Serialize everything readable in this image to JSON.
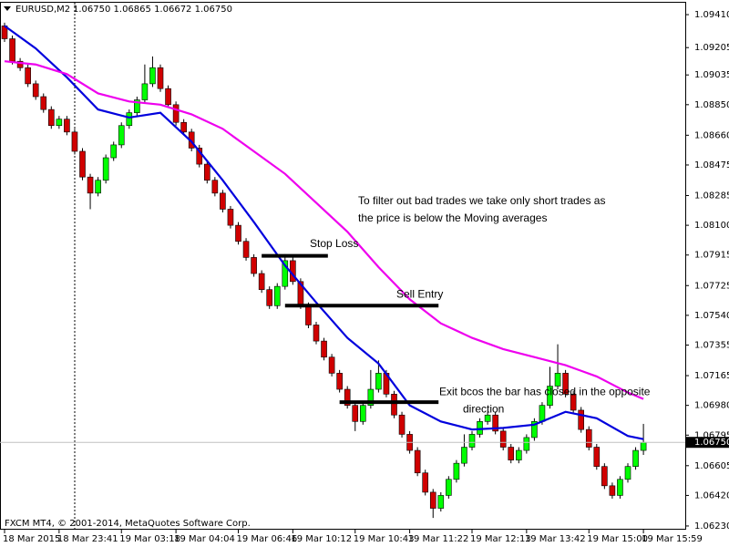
{
  "chart_data": {
    "type": "candlestick",
    "symbol": "EURUSD,M2",
    "ohlc_text": "1.06750 1.06865 1.06672 1.06750",
    "footer": "FXCM MT4, © 2001-2014, MetaQuotes Software Corp.",
    "bull_color": "#00ff00",
    "bear_color": "#d00000",
    "ylim": [
      1.06207,
      1.09484
    ],
    "yticks": [
      {
        "value": 1.0941,
        "label": "1.09410"
      },
      1.09205,
      1.09035,
      {
        "value": 1.0885,
        "label": "1.08850"
      },
      {
        "value": 1.0866,
        "label": "1.08660"
      },
      1.08475,
      1.08285,
      {
        "value": 1.081,
        "label": "1.08100"
      },
      1.07915,
      1.07725,
      {
        "value": 1.0754,
        "label": "1.07540"
      },
      1.07355,
      1.07165,
      {
        "value": 1.0698,
        "label": "1.06980"
      },
      1.06795,
      1.06605,
      {
        "value": 1.0642,
        "label": "1.06420"
      },
      {
        "value": 1.0623,
        "label": "1.06230"
      }
    ],
    "current_price": {
      "value": 1.0675,
      "label": "1.06750"
    },
    "categories": [
      "18 Mar 2015",
      null,
      null,
      null,
      null,
      null,
      null,
      "18 Mar 23:41",
      null,
      null,
      null,
      null,
      null,
      null,
      null,
      "19 Mar 03:18",
      null,
      null,
      null,
      null,
      null,
      null,
      "19 Mar 04:04",
      null,
      null,
      null,
      null,
      null,
      null,
      null,
      "19 Mar 06:46",
      null,
      null,
      null,
      null,
      null,
      null,
      "19 Mar 10:12",
      null,
      null,
      null,
      null,
      null,
      null,
      null,
      "19 Mar 10:43",
      null,
      null,
      null,
      null,
      null,
      null,
      "19 Mar 11:22",
      null,
      null,
      null,
      null,
      null,
      null,
      null,
      "19 Mar 12:13",
      null,
      null,
      null,
      null,
      null,
      null,
      "19 Mar 13:42",
      null,
      null,
      null,
      null,
      null,
      null,
      null,
      "19 Mar 15:00",
      null,
      null,
      null,
      null,
      null,
      null,
      "19 Mar 15:59"
    ],
    "open": [
      1.0934,
      1.0926,
      1.0912,
      1.0908,
      1.0898,
      1.089,
      1.0882,
      1.0872,
      1.0876,
      1.0868,
      1.0856,
      1.084,
      1.083,
      1.0838,
      1.0852,
      1.086,
      1.0872,
      1.088,
      1.0888,
      1.0898,
      1.0908,
      1.0895,
      1.0885,
      1.0874,
      1.0868,
      1.0858,
      1.0848,
      1.0838,
      1.083,
      1.082,
      1.081,
      1.08,
      1.079,
      1.078,
      1.077,
      1.076,
      1.0772,
      1.0788,
      1.0775,
      1.076,
      1.0748,
      1.0738,
      1.0728,
      1.0718,
      1.0708,
      1.0698,
      1.0688,
      1.0698,
      1.0708,
      1.0718,
      1.0705,
      1.0692,
      1.068,
      1.067,
      1.0656,
      1.0644,
      1.0634,
      1.0642,
      1.0652,
      1.0662,
      1.0672,
      1.068,
      1.0688,
      1.0692,
      1.0682,
      1.0672,
      1.0664,
      1.067,
      1.0678,
      1.0688,
      1.0698,
      1.071,
      1.0718,
      1.0705,
      1.0695,
      1.0683,
      1.0672,
      1.066,
      1.0648,
      1.0642,
      1.0652,
      1.066,
      1.067
    ],
    "high": [
      1.0936,
      1.0928,
      1.0914,
      1.091,
      1.09,
      1.0892,
      1.0884,
      1.0878,
      1.0878,
      1.087,
      1.0858,
      1.0842,
      1.084,
      1.0854,
      1.0862,
      1.0874,
      1.0882,
      1.089,
      1.091,
      1.0915,
      1.091,
      1.0897,
      1.0887,
      1.0876,
      1.087,
      1.086,
      1.085,
      1.084,
      1.0832,
      1.0822,
      1.0812,
      1.0802,
      1.0792,
      1.0782,
      1.0772,
      1.0774,
      1.0792,
      1.079,
      1.0777,
      1.0762,
      1.075,
      1.074,
      1.073,
      1.072,
      1.071,
      1.07,
      1.07,
      1.072,
      1.0726,
      1.072,
      1.0707,
      1.0694,
      1.0682,
      1.0672,
      1.0658,
      1.0646,
      1.0644,
      1.0654,
      1.0664,
      1.068,
      1.0682,
      1.069,
      1.0694,
      1.0694,
      1.0684,
      1.0674,
      1.0672,
      1.068,
      1.069,
      1.07,
      1.0722,
      1.0736,
      1.072,
      1.0707,
      1.0697,
      1.0685,
      1.0674,
      1.0662,
      1.065,
      1.0654,
      1.0662,
      1.0672,
      1.06865
    ],
    "low": [
      1.0924,
      1.091,
      1.0906,
      1.0896,
      1.0888,
      1.088,
      1.087,
      1.087,
      1.0866,
      1.0854,
      1.0838,
      1.082,
      1.0828,
      1.0836,
      1.085,
      1.0858,
      1.087,
      1.0878,
      1.0886,
      1.0896,
      1.0893,
      1.0883,
      1.0872,
      1.0866,
      1.0856,
      1.0846,
      1.0836,
      1.0828,
      1.0818,
      1.0808,
      1.0798,
      1.0788,
      1.0778,
      1.0768,
      1.0758,
      1.0758,
      1.077,
      1.0773,
      1.0758,
      1.0746,
      1.0736,
      1.0726,
      1.0716,
      1.0706,
      1.0696,
      1.0682,
      1.0686,
      1.0696,
      1.0706,
      1.0703,
      1.069,
      1.0678,
      1.0668,
      1.0654,
      1.0642,
      1.0628,
      1.0632,
      1.064,
      1.065,
      1.066,
      1.067,
      1.0678,
      1.0686,
      1.068,
      1.067,
      1.0662,
      1.0662,
      1.0668,
      1.0676,
      1.0686,
      1.0696,
      1.0708,
      1.0703,
      1.0693,
      1.0681,
      1.067,
      1.0658,
      1.0646,
      1.064,
      1.064,
      1.065,
      1.0658,
      1.06672
    ],
    "close": [
      1.0926,
      1.0912,
      1.0908,
      1.0898,
      1.089,
      1.0882,
      1.0872,
      1.0876,
      1.0868,
      1.0856,
      1.084,
      1.083,
      1.0838,
      1.0852,
      1.086,
      1.0872,
      1.088,
      1.0888,
      1.0898,
      1.0908,
      1.0895,
      1.0885,
      1.0874,
      1.0868,
      1.0858,
      1.0848,
      1.0838,
      1.083,
      1.082,
      1.081,
      1.08,
      1.079,
      1.078,
      1.077,
      1.076,
      1.0772,
      1.0788,
      1.0775,
      1.076,
      1.0748,
      1.0738,
      1.0728,
      1.0718,
      1.0708,
      1.0698,
      1.0688,
      1.0698,
      1.0708,
      1.0718,
      1.0705,
      1.0692,
      1.068,
      1.067,
      1.0656,
      1.0644,
      1.0634,
      1.0642,
      1.0652,
      1.0662,
      1.0672,
      1.068,
      1.0688,
      1.0692,
      1.0682,
      1.0672,
      1.0664,
      1.067,
      1.0678,
      1.0688,
      1.0698,
      1.071,
      1.0718,
      1.0705,
      1.0695,
      1.0683,
      1.0672,
      1.066,
      1.0648,
      1.0642,
      1.0652,
      1.066,
      1.067,
      1.0675
    ],
    "lines": [
      {
        "color": "#0000dd",
        "x": [
          0,
          4,
          8,
          12,
          16,
          20,
          24,
          28,
          32,
          36,
          40,
          44,
          48,
          52,
          56,
          60,
          64,
          68,
          72,
          76,
          80,
          82
        ],
        "values": [
          1.0934,
          1.092,
          1.0902,
          1.0882,
          1.0877,
          1.088,
          1.0862,
          1.0838,
          1.0812,
          1.0785,
          1.0762,
          1.074,
          1.0724,
          1.0698,
          1.0688,
          1.0683,
          1.0684,
          1.0686,
          1.0694,
          1.069,
          1.0679,
          1.0677
        ]
      },
      {
        "color": "#ee00ee",
        "x": [
          0,
          4,
          8,
          12,
          16,
          20,
          24,
          28,
          32,
          36,
          40,
          44,
          48,
          52,
          56,
          60,
          64,
          68,
          72,
          76,
          80,
          82
        ],
        "values": [
          1.0912,
          1.091,
          1.0904,
          1.0892,
          1.0887,
          1.0885,
          1.0879,
          1.087,
          1.0856,
          1.0842,
          1.0824,
          1.0806,
          1.0784,
          1.0764,
          1.0749,
          1.074,
          1.0733,
          1.0728,
          1.0723,
          1.0716,
          1.0706,
          1.0702
        ]
      }
    ],
    "levels": [
      {
        "label": [
          "Stop Loss"
        ],
        "level": 1.0791,
        "x": [
          33,
          41.5
        ]
      },
      {
        "label": [
          "Sell Entry"
        ],
        "level": 1.076,
        "x": [
          36,
          55.7
        ]
      },
      {
        "label": [
          "Exit bcos the bar has closed in the opposite",
          "direction"
        ],
        "level": 1.07,
        "x": [
          43,
          55.7
        ]
      }
    ],
    "note": [
      "To filter out bad trades we take only short trades as",
      "the price is below the Moving averages"
    ]
  }
}
